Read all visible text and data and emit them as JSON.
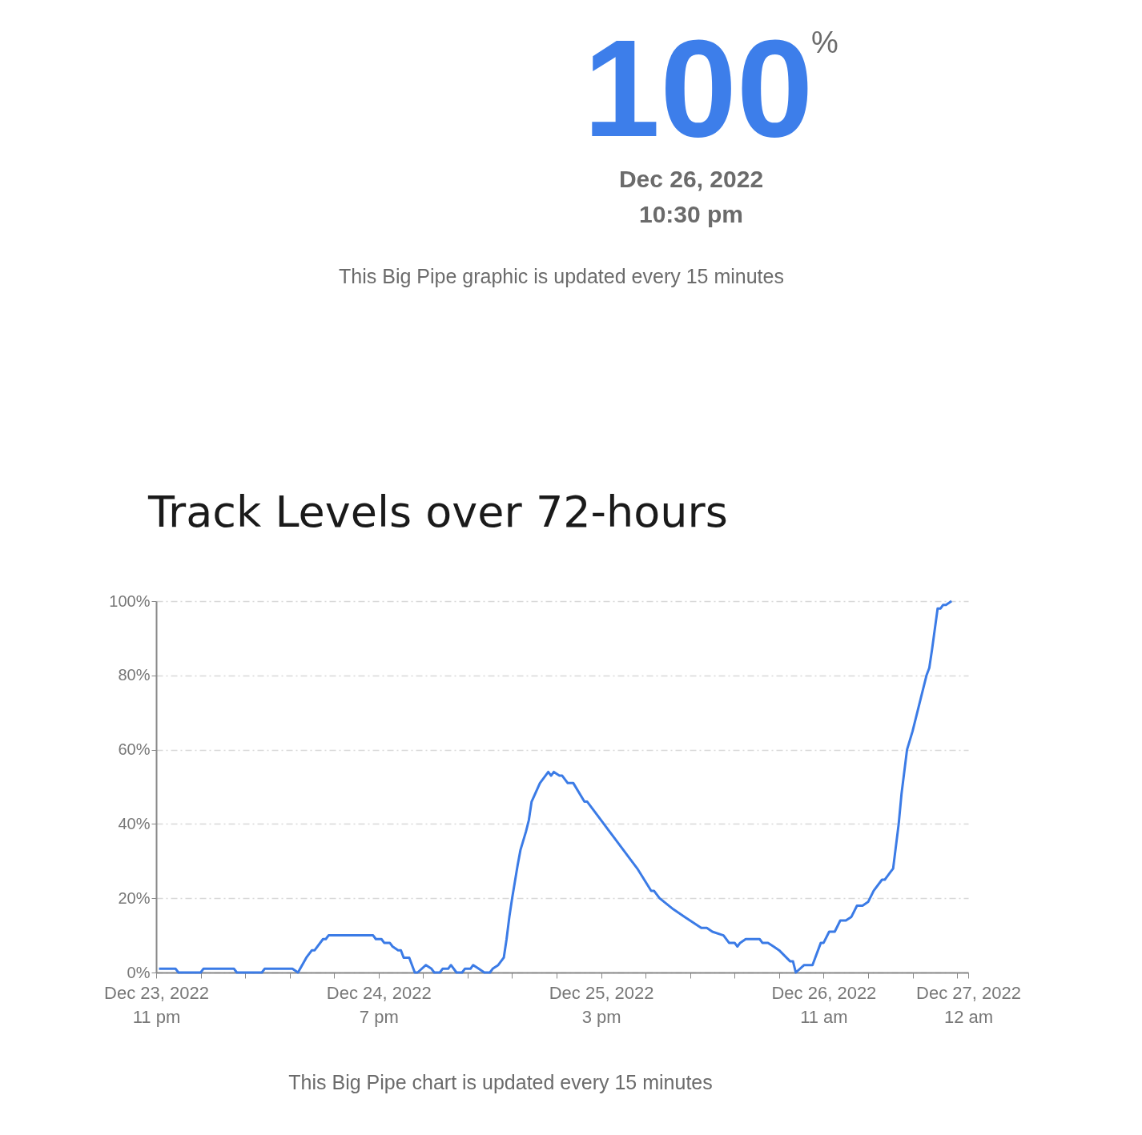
{
  "chart_data": [
    {
      "type": "other",
      "annotations": [
        "100",
        "%",
        "Dec 26, 2022",
        "10:30 pm",
        "This Big Pipe graphic is updated every 15 minutes"
      ]
    },
    {
      "type": "line",
      "title": "Track Levels over 72-hours",
      "annotations": [
        "This Big Pipe chart is updated every 15 minutes"
      ],
      "x": [
        "2022-12-23T23:15",
        "2022-12-24T00:45",
        "2022-12-24T01:00",
        "2022-12-24T03:00",
        "2022-12-24T03:15",
        "2022-12-24T06:00",
        "2022-12-24T06:15",
        "2022-12-24T08:30",
        "2022-12-24T08:45",
        "2022-12-24T11:15",
        "2022-12-24T11:45",
        "2022-12-24T12:30",
        "2022-12-24T13:00",
        "2022-12-24T13:15",
        "2022-12-24T14:00",
        "2022-12-24T14:15",
        "2022-12-24T14:30",
        "2022-12-24T18:30",
        "2022-12-24T18:45",
        "2022-12-24T19:15",
        "2022-12-24T19:30",
        "2022-12-24T20:00",
        "2022-12-24T20:15",
        "2022-12-24T20:45",
        "2022-12-24T21:00",
        "2022-12-24T21:15",
        "2022-12-24T21:45",
        "2022-12-24T22:15",
        "2022-12-24T22:30",
        "2022-12-24T23:15",
        "2022-12-24T23:45",
        "2022-12-25T00:00",
        "2022-12-25T00:30",
        "2022-12-25T00:45",
        "2022-12-25T01:15",
        "2022-12-25T01:30",
        "2022-12-25T02:00",
        "2022-12-25T02:30",
        "2022-12-25T02:45",
        "2022-12-25T03:15",
        "2022-12-25T03:30",
        "2022-12-25T04:00",
        "2022-12-25T04:30",
        "2022-12-25T05:00",
        "2022-12-25T05:15",
        "2022-12-25T05:45",
        "2022-12-25T06:15",
        "2022-12-25T06:30",
        "2022-12-25T06:45",
        "2022-12-25T07:00",
        "2022-12-25T07:30",
        "2022-12-25T07:45",
        "2022-12-25T08:15",
        "2022-12-25T08:30",
        "2022-12-25T08:45",
        "2022-12-25T09:30",
        "2022-12-25T10:15",
        "2022-12-25T10:30",
        "2022-12-25T10:45",
        "2022-12-25T11:15",
        "2022-12-25T11:30",
        "2022-12-25T12:00",
        "2022-12-25T12:30",
        "2022-12-25T13:30",
        "2022-12-25T13:45",
        "2022-12-25T17:45",
        "2022-12-25T18:15",
        "2022-12-25T19:30",
        "2022-12-25T19:45",
        "2022-12-25T20:15",
        "2022-12-25T21:30",
        "2022-12-25T22:30",
        "2022-12-26T00:00",
        "2022-12-26T00:30",
        "2022-12-26T01:00",
        "2022-12-26T02:00",
        "2022-12-26T02:30",
        "2022-12-26T03:00",
        "2022-12-26T03:15",
        "2022-12-26T03:30",
        "2022-12-26T04:00",
        "2022-12-26T05:15",
        "2022-12-26T05:30",
        "2022-12-26T06:00",
        "2022-12-26T06:30",
        "2022-12-26T07:00",
        "2022-12-26T08:00",
        "2022-12-26T08:15",
        "2022-12-26T08:30",
        "2022-12-26T09:15",
        "2022-12-26T10:00",
        "2022-12-26T10:45",
        "2022-12-26T11:00",
        "2022-12-26T11:30",
        "2022-12-26T12:00",
        "2022-12-26T12:30",
        "2022-12-26T13:00",
        "2022-12-26T13:30",
        "2022-12-26T14:00",
        "2022-12-26T14:30",
        "2022-12-26T15:00",
        "2022-12-26T15:30",
        "2022-12-26T16:15",
        "2022-12-26T16:30",
        "2022-12-26T16:45",
        "2022-12-26T17:00",
        "2022-12-26T17:15",
        "2022-12-26T17:45",
        "2022-12-26T18:00",
        "2022-12-26T18:30",
        "2022-12-26T19:00",
        "2022-12-26T19:45",
        "2022-12-26T20:15",
        "2022-12-26T20:30",
        "2022-12-26T20:45",
        "2022-12-26T21:15",
        "2022-12-26T21:30",
        "2022-12-26T21:45",
        "2022-12-26T22:00",
        "2022-12-26T22:30"
      ],
      "series": [
        {
          "color": "#3b7be6",
          "values": [
            1,
            1,
            0,
            0,
            1,
            1,
            0,
            0,
            1,
            1,
            0,
            4,
            6,
            6,
            9,
            9,
            10,
            10,
            9,
            9,
            8,
            8,
            7,
            6,
            6,
            4,
            4,
            0,
            0,
            2,
            1,
            0,
            0,
            1,
            1,
            2,
            0,
            0,
            1,
            1,
            2,
            1,
            0,
            0,
            1,
            2,
            4,
            9,
            15,
            20,
            29,
            33,
            38,
            41,
            46,
            51,
            54,
            53,
            54,
            53,
            53,
            51,
            51,
            46,
            46,
            30,
            28,
            22,
            22,
            20,
            17,
            15,
            12,
            12,
            11,
            10,
            8,
            8,
            7,
            8,
            9,
            9,
            8,
            8,
            7,
            6,
            3,
            3,
            0,
            2,
            2,
            8,
            8,
            11,
            11,
            14,
            14,
            15,
            18,
            18,
            19,
            22,
            25,
            25,
            26,
            27,
            28,
            40,
            48,
            60,
            65,
            74,
            80,
            82,
            87,
            98,
            98,
            99,
            99,
            100
          ]
        }
      ],
      "xlim": [
        "2022-12-23T23:00",
        "2022-12-27T00:00"
      ],
      "xticks": [
        {
          "value": "2022-12-23T23:00",
          "label": "Dec 23, 2022\n11 pm"
        },
        {
          "value": "2022-12-24T03:00",
          "label": null
        },
        {
          "value": "2022-12-24T07:00",
          "label": null
        },
        {
          "value": "2022-12-24T11:00",
          "label": null
        },
        {
          "value": "2022-12-24T15:00",
          "label": null
        },
        {
          "value": "2022-12-24T19:00",
          "label": "Dec 24, 2022\n7 pm"
        },
        {
          "value": "2022-12-24T23:00",
          "label": null
        },
        {
          "value": "2022-12-25T03:00",
          "label": null
        },
        {
          "value": "2022-12-25T07:00",
          "label": null
        },
        {
          "value": "2022-12-25T11:00",
          "label": null
        },
        {
          "value": "2022-12-25T15:00",
          "label": "Dec 25, 2022\n3 pm"
        },
        {
          "value": "2022-12-25T19:00",
          "label": null
        },
        {
          "value": "2022-12-25T23:00",
          "label": null
        },
        {
          "value": "2022-12-26T03:00",
          "label": null
        },
        {
          "value": "2022-12-26T07:00",
          "label": null
        },
        {
          "value": "2022-12-26T11:00",
          "label": "Dec 26, 2022\n11 am"
        },
        {
          "value": "2022-12-26T15:00",
          "label": null
        },
        {
          "value": "2022-12-26T19:00",
          "label": null
        },
        {
          "value": "2022-12-26T23:00",
          "label": null
        },
        {
          "value": "2022-12-27T00:00",
          "label": "Dec 27, 2022\n12 am"
        }
      ],
      "ylim": [
        0,
        100
      ],
      "yticks": [
        {
          "value": 0,
          "label": "0%"
        },
        {
          "value": 20,
          "label": "20%"
        },
        {
          "value": 40,
          "label": "40%"
        },
        {
          "value": 60,
          "label": "60%"
        },
        {
          "value": 80,
          "label": "80%"
        },
        {
          "value": 100,
          "label": "100%"
        }
      ],
      "grid": "y",
      "legend": false,
      "marker": "none",
      "line_style": "solid"
    }
  ]
}
